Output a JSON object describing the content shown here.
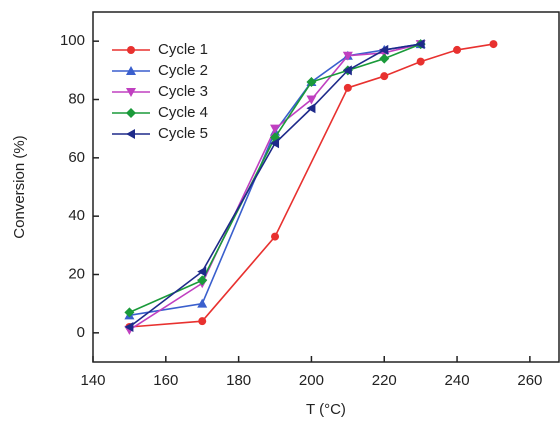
{
  "chart_data": {
    "type": "line",
    "xlabel": "T (°C)",
    "ylabel": "Conversion (%)",
    "xlim": [
      140,
      268
    ],
    "xticks": [
      140,
      160,
      180,
      200,
      220,
      240,
      260
    ],
    "ylim": [
      -10,
      110
    ],
    "yticks": [
      0,
      20,
      40,
      60,
      80,
      100
    ],
    "legend": "upper left",
    "series": [
      {
        "name": "Cycle 1",
        "color": "#e8312f",
        "marker": "circle",
        "x": [
          150,
          170,
          190,
          210,
          220,
          230,
          240,
          250
        ],
        "values": [
          2,
          4,
          33,
          84,
          88,
          93,
          97,
          99
        ]
      },
      {
        "name": "Cycle 2",
        "color": "#3a5fcd",
        "marker": "triangle-up",
        "x": [
          150,
          170,
          190,
          200,
          210,
          220,
          230
        ],
        "values": [
          6,
          10,
          69,
          86,
          95,
          97,
          99
        ]
      },
      {
        "name": "Cycle 3",
        "color": "#c040c0",
        "marker": "triangle-down",
        "x": [
          150,
          170,
          190,
          200,
          210,
          220,
          230
        ],
        "values": [
          1,
          17,
          70,
          80,
          95,
          96,
          99
        ]
      },
      {
        "name": "Cycle 4",
        "color": "#1a9a3a",
        "marker": "diamond",
        "x": [
          150,
          170,
          190,
          200,
          210,
          220,
          230
        ],
        "values": [
          7,
          18,
          67,
          86,
          90,
          94,
          99
        ]
      },
      {
        "name": "Cycle 5",
        "color": "#1e2a8a",
        "marker": "triangle-left",
        "x": [
          150,
          170,
          190,
          200,
          210,
          220,
          230
        ],
        "values": [
          2,
          21,
          65,
          77,
          90,
          97,
          99
        ]
      }
    ]
  }
}
